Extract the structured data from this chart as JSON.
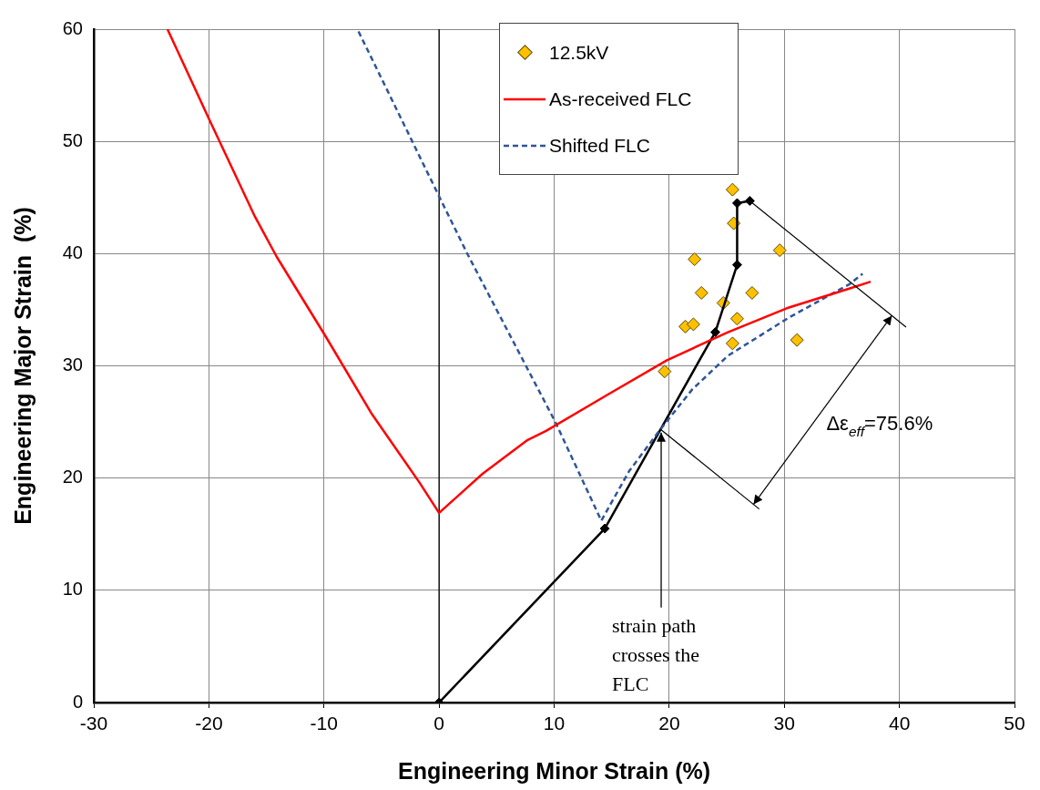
{
  "chart_data": {
    "type": "line",
    "xlabel": "Engineering Minor Strain (%)",
    "ylabel": "Engineering Major Strain  (%)",
    "xlim": [
      -30,
      50
    ],
    "xticks": [
      -30,
      -20,
      -10,
      0,
      10,
      20,
      30,
      40,
      50
    ],
    "ylim": [
      0,
      60
    ],
    "yticks": [
      0,
      10,
      20,
      30,
      40,
      50,
      60
    ],
    "grid": true,
    "legend": "top",
    "ref_lines": [
      {
        "axis": "x",
        "value": 0,
        "color": "#000000"
      }
    ],
    "series": [
      {
        "name": "12.5kV",
        "type": "scatter",
        "color": "#ffc000",
        "marker": "diamond",
        "x": [
          25.5,
          25.6,
          29.6,
          22.2,
          22.8,
          27.2,
          24.7,
          25.9,
          21.4,
          22.1,
          25.5,
          31.1,
          19.6
        ],
        "values": [
          45.7,
          42.7,
          40.3,
          39.5,
          36.5,
          36.5,
          35.6,
          34.2,
          33.5,
          33.7,
          32.0,
          32.3,
          29.5
        ]
      },
      {
        "name": "As-received FLC",
        "color": "#ff0000",
        "marker": "none",
        "line_style": "solid",
        "x": [
          -23.6,
          -19.9,
          -16.0,
          -14.1,
          -9.9,
          -5.9,
          -1.7,
          0,
          3.8,
          7.7,
          9.3,
          14.6,
          19.8,
          25.1,
          30.4,
          35.7,
          37.5
        ],
        "values": [
          60,
          51.8,
          43.3,
          39.7,
          32.7,
          25.8,
          19.6,
          16.9,
          20.4,
          23.4,
          24.2,
          27.4,
          30.5,
          33.0,
          35.2,
          36.9,
          37.5
        ]
      },
      {
        "name": "Shifted FLC",
        "color": "#2f5597",
        "marker": "none",
        "line_style": "dashed",
        "x": [
          -7.0,
          0.1,
          2.5,
          10.1,
          14.1,
          16.5,
          19.2,
          22.0,
          25.1,
          30.4,
          35.7,
          36.8
        ],
        "values": [
          59.8,
          44.9,
          39.9,
          25.0,
          16.2,
          20.6,
          24.3,
          27.9,
          30.9,
          34.3,
          37.3,
          38.2
        ]
      },
      {
        "color": "#000000",
        "marker": "diamond",
        "line_style": "solid",
        "x": [
          0,
          14.4,
          24.0,
          25.9,
          25.9,
          27.0
        ],
        "values": [
          0,
          15.5,
          33.0,
          39.0,
          44.5,
          44.7
        ]
      }
    ],
    "annotations": [
      {
        "text": "strain path crosses the FLC",
        "x": 19.3,
        "y": 24.3
      },
      "Δε$_{eff}$=75.6%"
    ]
  }
}
